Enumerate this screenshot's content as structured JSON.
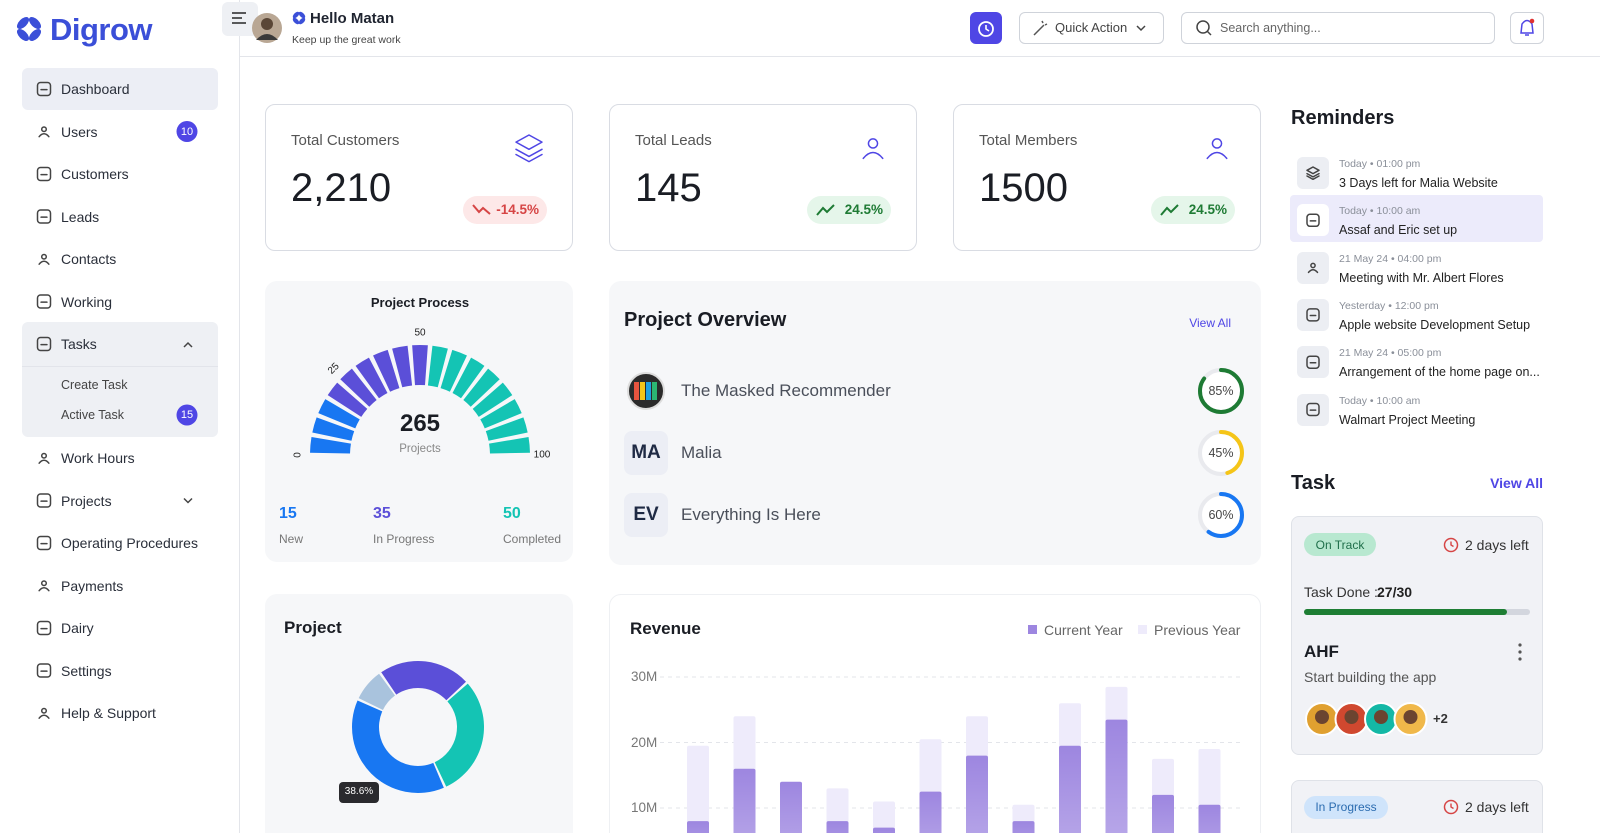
{
  "sidebar": {
    "logo": "Digrow",
    "menu": [
      {
        "label": "Dashboard",
        "active": true
      },
      {
        "label": "Users",
        "badge": 10
      },
      {
        "label": "Customers"
      },
      {
        "label": "Leads"
      },
      {
        "label": "Contacts"
      },
      {
        "label": "Working"
      },
      {
        "label": "Tasks",
        "expanded": true,
        "children": [
          {
            "label": "Create Task"
          },
          {
            "label": "Active Task",
            "badge": 15
          }
        ]
      },
      {
        "label": "Work Hours"
      },
      {
        "label": "Projects",
        "collapsed": true
      },
      {
        "label": "Operating Procedures"
      },
      {
        "label": "Payments"
      },
      {
        "label": "Dairy"
      },
      {
        "label": "Settings"
      },
      {
        "label": "Help & Support"
      }
    ]
  },
  "header": {
    "greeting": "Hello Matan",
    "subtitle": "Keep up the great work",
    "quick_action": "Quick Action",
    "search": "Search anything..."
  },
  "stats": [
    {
      "title": "Total Customers",
      "value": "2,210",
      "change": "-14.5%",
      "trend": "down"
    },
    {
      "title": "Total Leads",
      "value": "145",
      "change": "24.5%",
      "trend": "up"
    },
    {
      "title": "Total Members",
      "value": "1500",
      "change": "24.5%",
      "trend": "up"
    }
  ],
  "project_process": {
    "type": "gauge",
    "title": "Project Process",
    "total": 265,
    "total_label": "Projects",
    "scale_lim": [
      0,
      100
    ],
    "scale_ticks": [
      0,
      25,
      50,
      100
    ],
    "items": [
      {
        "value": 15,
        "label": "New",
        "color": "#1877f2"
      },
      {
        "value": 35,
        "label": "In Progress",
        "color": "#5b4fd8"
      },
      {
        "value": 50,
        "label": "Completed",
        "color": "#14c4b4"
      }
    ]
  },
  "project_overview": {
    "title": "Project Overview",
    "view_all": "View All",
    "projects": [
      {
        "name": "The Masked Recommender",
        "progress": 85,
        "progress_label": "85%",
        "color": "#1e7b34"
      },
      {
        "initials": "MA",
        "name": "Malia",
        "progress": 45,
        "progress_label": "45%",
        "color": "#f5c518"
      },
      {
        "initials": "EV",
        "name": "Everything Is Here",
        "progress": 60,
        "progress_label": "60%",
        "color": "#1877f2"
      }
    ]
  },
  "project_chart": {
    "type": "donut",
    "title": "Project",
    "values": [
      23,
      30,
      38.6,
      8.4
    ],
    "colors": [
      "#5b4fd8",
      "#14c4b4",
      "#1877f2",
      "#a9c3dd"
    ],
    "value_labels": [
      null,
      null,
      "38.6%",
      null
    ]
  },
  "revenue": {
    "type": "bar",
    "title": "Revenue",
    "ylim": [
      0,
      30
    ],
    "yticks": [
      {
        "value": 10,
        "label": "10M"
      },
      {
        "value": 20,
        "label": "20M"
      },
      {
        "value": 30,
        "label": "30M"
      }
    ],
    "grid": true,
    "series": [
      {
        "name": "Current Year",
        "color": "#9d86e0",
        "values": [
          8,
          16,
          14,
          8,
          7,
          12.5,
          18,
          8,
          19.5,
          23.5,
          12,
          10.5
        ]
      },
      {
        "name": "Previous Year",
        "color": "#eeebfb",
        "values": [
          19.5,
          24,
          13,
          13,
          11,
          20.5,
          24,
          10.5,
          26,
          28.5,
          17.5,
          19
        ]
      }
    ]
  },
  "reminders": {
    "title": "Reminders",
    "items": [
      {
        "time": "Today • 01:00 pm",
        "text": "3 Days left for Malia Website"
      },
      {
        "time": "Today • 10:00 am",
        "text": "Assaf and Eric set up",
        "highlighted": true
      },
      {
        "time": "21 May 24 • 04:00 pm",
        "text": "Meeting with  Mr. Albert Flores"
      },
      {
        "time": "Yesterday • 12:00 pm",
        "text": "Apple website Development Setup"
      },
      {
        "time": "21 May 24 • 05:00 pm",
        "text": "Arrangement of the home page on..."
      },
      {
        "time": "Today • 10:00 am",
        "text": "Walmart Project Meeting"
      }
    ]
  },
  "task": {
    "title": "Task",
    "view_all": "View All",
    "cards": [
      {
        "status": "On Track",
        "due": "2 days left",
        "done_label": "Task Done :",
        "done": "27/30",
        "name": "AHF",
        "description": "Start building the app",
        "extra_members": "+2"
      },
      {
        "status": "In Progress",
        "due": "2 days left"
      }
    ]
  }
}
